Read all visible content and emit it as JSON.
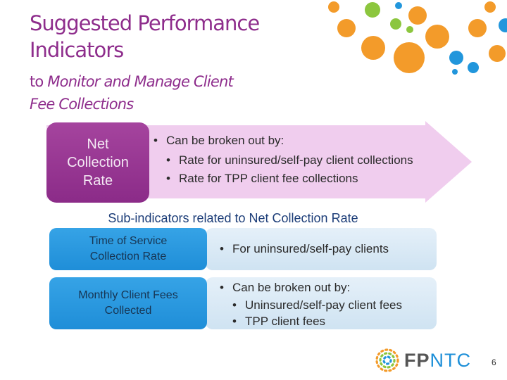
{
  "header": {
    "title_line1": "Suggested Performance",
    "title_line2": "Indicators",
    "subtitle_prefix": "to ",
    "subtitle_italic_line1": "Monitor and Manage Client",
    "subtitle_italic_line2": "Fee Collections"
  },
  "net_collection": {
    "box_line1": "Net",
    "box_line2": "Collection",
    "box_line3": "Rate",
    "bullet": "Can be broken out by:",
    "sub_bullets": [
      "Rate for uninsured/self-pay client collections",
      "Rate for TPP client fee collections"
    ]
  },
  "sub_indicators_heading": "Sub-indicators related to Net Collection Rate",
  "time_of_service": {
    "box_line1": "Time of Service",
    "box_line2": "Collection Rate",
    "bullet": "For uninsured/self-pay clients"
  },
  "monthly_fees": {
    "box_line1": "Monthly Client Fees",
    "box_line2": "Collected",
    "bullet": "Can be broken out by:",
    "sub_bullets": [
      "Uninsured/self-pay client fees",
      "TPP client fees"
    ]
  },
  "logo": {
    "part1": "FP",
    "part2": "NTC"
  },
  "page_number": "6",
  "colors": {
    "purple": "#8e2d8c",
    "light_purple": "#f0cdee",
    "blue": "#2196dc",
    "light_blue": "#d6e8f5",
    "orange": "#f39b2a",
    "green": "#8cc63e"
  }
}
